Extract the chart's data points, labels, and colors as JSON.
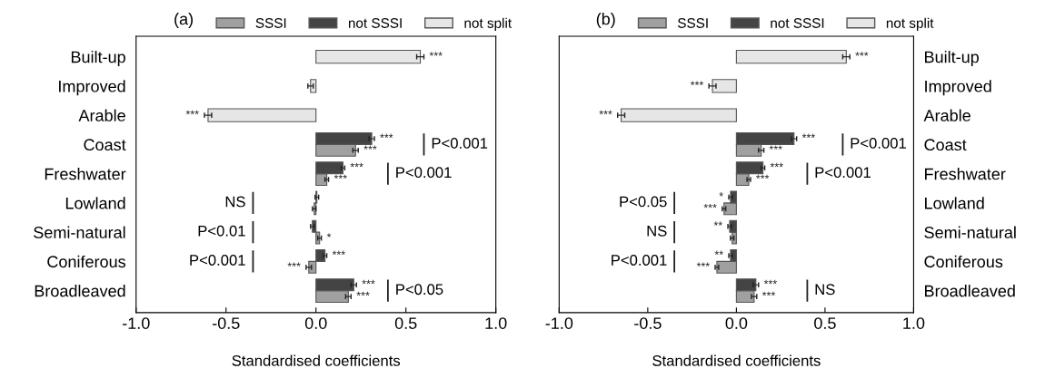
{
  "chart_data": [
    {
      "type": "bar",
      "orientation": "horizontal",
      "title": "(a)",
      "xlabel": "Standardised coefficients",
      "categories": [
        "Built-up",
        "Improved",
        "Arable",
        "Coast",
        "Freshwater",
        "Lowland",
        "Semi-natural",
        "Coniferous",
        "Broadleaved"
      ],
      "series": [
        {
          "name": "SSSI",
          "color": "#a0a0a0",
          "values": [
            null,
            null,
            null,
            0.22,
            0.06,
            -0.01,
            0.02,
            -0.04,
            0.18
          ],
          "errors": [
            null,
            null,
            null,
            0.015,
            0.01,
            0.01,
            0.01,
            0.015,
            0.015
          ],
          "value_labels": [
            null,
            null,
            null,
            "***",
            "***",
            null,
            "*",
            "***",
            "***"
          ]
        },
        {
          "name": "not SSSI",
          "color": "#444444",
          "values": [
            null,
            null,
            null,
            0.31,
            0.15,
            0.005,
            -0.02,
            0.05,
            0.21
          ],
          "errors": [
            null,
            null,
            null,
            0.015,
            0.01,
            0.01,
            0.01,
            0.01,
            0.015
          ],
          "value_labels": [
            null,
            null,
            null,
            "***",
            "***",
            null,
            null,
            "***",
            "***"
          ]
        },
        {
          "name": "not split",
          "color": "#e6e6e6",
          "values": [
            0.58,
            -0.03,
            -0.6,
            null,
            null,
            null,
            null,
            null,
            null
          ],
          "errors": [
            0.02,
            0.015,
            0.02,
            null,
            null,
            null,
            null,
            null,
            null
          ],
          "value_labels": [
            "***",
            null,
            "***",
            null,
            null,
            null,
            null,
            null,
            null
          ]
        }
      ],
      "annotations": [
        "P<0.001",
        "P<0.001",
        "NS",
        "P<0.01",
        "P<0.001",
        "P<0.05"
      ],
      "xlim": [
        -1.0,
        1.0
      ],
      "xticks": [
        {
          "value": -1.0,
          "label": "-1.0"
        },
        {
          "value": -0.5,
          "label": "-0.5"
        },
        {
          "value": 0.0,
          "label": "0.0"
        },
        {
          "value": 0.5,
          "label": "0.5"
        },
        {
          "value": 1.0,
          "label": "1.0"
        }
      ],
      "legend": "top",
      "grid": false
    },
    {
      "type": "bar",
      "orientation": "horizontal",
      "title": "(b)",
      "xlabel": "Standardised coefficients",
      "categories": [
        "Built-up",
        "Improved",
        "Arable",
        "Coast",
        "Freshwater",
        "Lowland",
        "Semi-natural",
        "Coniferous",
        "Broadleaved"
      ],
      "series": [
        {
          "name": "SSSI",
          "color": "#a0a0a0",
          "values": [
            null,
            null,
            null,
            0.14,
            0.07,
            -0.07,
            -0.024,
            -0.11,
            0.1
          ],
          "errors": [
            null,
            null,
            null,
            0.015,
            0.01,
            0.01,
            0.01,
            0.01,
            0.015
          ],
          "value_labels": [
            null,
            null,
            null,
            "***",
            "***",
            "***",
            null,
            "***",
            "***"
          ]
        },
        {
          "name": "not SSSI",
          "color": "#444444",
          "values": [
            null,
            null,
            null,
            0.325,
            0.15,
            -0.033,
            -0.038,
            -0.033,
            0.11
          ],
          "errors": [
            null,
            null,
            null,
            0.015,
            0.01,
            0.01,
            0.01,
            0.01,
            0.015
          ],
          "value_labels": [
            null,
            null,
            null,
            "***",
            "***",
            "*",
            "**",
            "**",
            "***"
          ]
        },
        {
          "name": "not split",
          "color": "#e6e6e6",
          "values": [
            0.62,
            -0.135,
            -0.65,
            null,
            null,
            null,
            null,
            null,
            null
          ],
          "errors": [
            0.02,
            0.02,
            0.02,
            null,
            null,
            null,
            null,
            null,
            null
          ],
          "value_labels": [
            "***",
            "***",
            "***",
            null,
            null,
            null,
            null,
            null,
            null
          ]
        }
      ],
      "annotations": [
        "P<0.001",
        "P<0.001",
        "P<0.05",
        "NS",
        "P<0.001",
        "NS"
      ],
      "xlim": [
        -1.0,
        1.0
      ],
      "xticks": [
        {
          "value": -1.0,
          "label": "-1.0"
        },
        {
          "value": -0.5,
          "label": "-0.5"
        },
        {
          "value": 0.0,
          "label": "0.0"
        },
        {
          "value": 0.5,
          "label": "0.5"
        },
        {
          "value": 1.0,
          "label": "1.0"
        }
      ],
      "legend": "top",
      "grid": false
    }
  ]
}
